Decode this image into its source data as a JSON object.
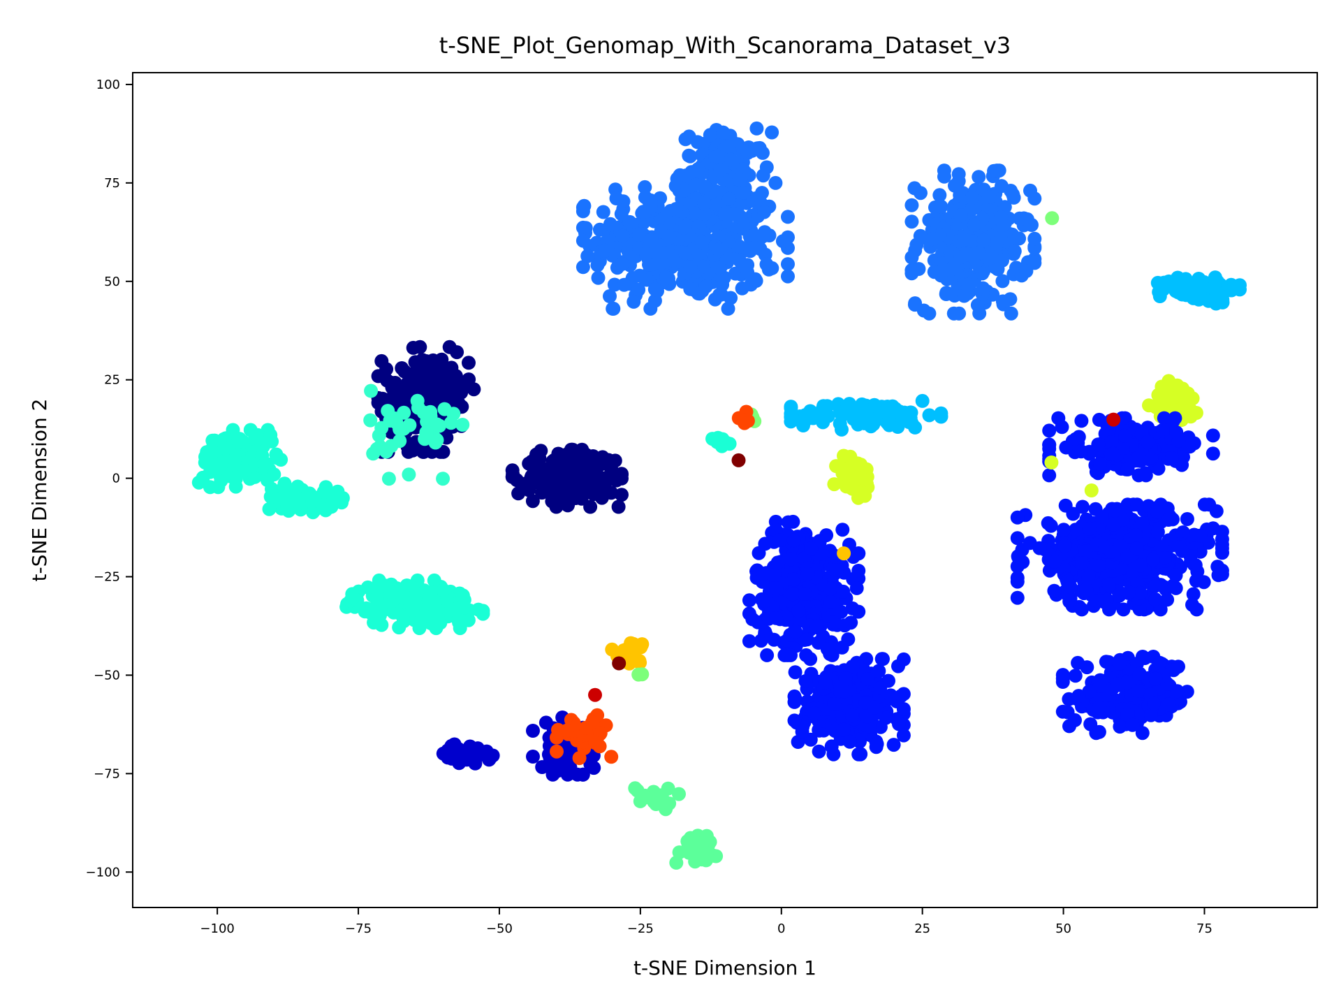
{
  "chart_data": {
    "type": "scatter",
    "title": "t-SNE_Plot_Genomap_With_Scanorama_Dataset_v3",
    "xlabel": "t-SNE Dimension 1",
    "ylabel": "t-SNE Dimension 2",
    "xlim": [
      -115,
      95
    ],
    "ylim": [
      -109,
      103
    ],
    "xticks": [
      {
        "value": -100,
        "label": "−100"
      },
      {
        "value": -75,
        "label": "−75"
      },
      {
        "value": -50,
        "label": "−50"
      },
      {
        "value": -25,
        "label": "−25"
      },
      {
        "value": 0,
        "label": "0"
      },
      {
        "value": 25,
        "label": "25"
      },
      {
        "value": 50,
        "label": "50"
      },
      {
        "value": 75,
        "label": "75"
      }
    ],
    "yticks": [
      {
        "value": 100,
        "label": "100"
      },
      {
        "value": 75,
        "label": "75"
      },
      {
        "value": 50,
        "label": "50"
      },
      {
        "value": 25,
        "label": "25"
      },
      {
        "value": 0,
        "label": "0"
      },
      {
        "value": -25,
        "label": "−25"
      },
      {
        "value": -50,
        "label": "−50"
      },
      {
        "value": -75,
        "label": "−75"
      },
      {
        "value": -100,
        "label": "−100"
      }
    ],
    "grid": false,
    "legend": "none",
    "colormap": "jet",
    "clusters": [
      {
        "color": "#1a73ff",
        "shape": "blob",
        "center": [
          -17,
          60
        ],
        "spread": [
          15,
          14
        ],
        "n": 420
      },
      {
        "color": "#1a73ff",
        "shape": "blob",
        "center": [
          -10,
          78
        ],
        "spread": [
          7,
          9
        ],
        "n": 120
      },
      {
        "color": "#1a73ff",
        "shape": "blob",
        "center": [
          34,
          60
        ],
        "spread": [
          9,
          15
        ],
        "n": 260
      },
      {
        "color": "#00bfff",
        "shape": "blob",
        "center": [
          74,
          48
        ],
        "spread": [
          6,
          3
        ],
        "n": 90
      },
      {
        "color": "#00bfff",
        "shape": "blob",
        "center": [
          15,
          16
        ],
        "spread": [
          11,
          3
        ],
        "n": 110
      },
      {
        "color": "#d6ff24",
        "shape": "blob",
        "center": [
          13,
          0
        ],
        "spread": [
          3,
          5
        ],
        "n": 45
      },
      {
        "color": "#d6ff24",
        "shape": "blob",
        "center": [
          70,
          19
        ],
        "spread": [
          4,
          5
        ],
        "n": 50
      },
      {
        "color": "#000080",
        "shape": "blob",
        "center": [
          -63,
          20
        ],
        "spread": [
          7,
          11
        ],
        "n": 220
      },
      {
        "color": "#000080",
        "shape": "blob",
        "center": [
          -38,
          0
        ],
        "spread": [
          8,
          6
        ],
        "n": 190
      },
      {
        "color": "#1affd5",
        "shape": "blob",
        "center": [
          -96,
          5
        ],
        "spread": [
          6,
          6
        ],
        "n": 130
      },
      {
        "color": "#1affd5",
        "shape": "blob",
        "center": [
          -85,
          -5
        ],
        "spread": [
          6,
          3
        ],
        "n": 60
      },
      {
        "color": "#1affd5",
        "shape": "blob",
        "center": [
          -65,
          -32
        ],
        "spread": [
          10,
          5
        ],
        "n": 170
      },
      {
        "color": "#33ffcc",
        "shape": "blob",
        "center": [
          -65,
          12
        ],
        "spread": [
          7,
          10
        ],
        "n": 40
      },
      {
        "color": "#0015ff",
        "shape": "blob",
        "center": [
          4,
          -28
        ],
        "spread": [
          8,
          14
        ],
        "n": 320
      },
      {
        "color": "#0015ff",
        "shape": "blob",
        "center": [
          12,
          -58
        ],
        "spread": [
          8,
          10
        ],
        "n": 240
      },
      {
        "color": "#0015ff",
        "shape": "blob",
        "center": [
          60,
          -20
        ],
        "spread": [
          15,
          11
        ],
        "n": 460
      },
      {
        "color": "#0015ff",
        "shape": "blob",
        "center": [
          62,
          -55
        ],
        "spread": [
          10,
          8
        ],
        "n": 160
      },
      {
        "color": "#0015ff",
        "shape": "blob",
        "center": [
          62,
          8
        ],
        "spread": [
          12,
          6
        ],
        "n": 150
      },
      {
        "color": "#0000cd",
        "shape": "blob",
        "center": [
          -56,
          -70
        ],
        "spread": [
          4,
          2
        ],
        "n": 40
      },
      {
        "color": "#0000cd",
        "shape": "blob",
        "center": [
          -38,
          -68
        ],
        "spread": [
          5,
          6
        ],
        "n": 70
      },
      {
        "color": "#ff4500",
        "shape": "blob",
        "center": [
          -35,
          -65
        ],
        "spread": [
          4,
          5
        ],
        "n": 35
      },
      {
        "color": "#ffc400",
        "shape": "blob",
        "center": [
          -27,
          -44
        ],
        "spread": [
          2.5,
          2.5
        ],
        "n": 20
      },
      {
        "color": "#5cff9a",
        "shape": "blob",
        "center": [
          -15,
          -94
        ],
        "spread": [
          3,
          3
        ],
        "n": 45
      },
      {
        "color": "#5cff9a",
        "shape": "blob",
        "center": [
          -22,
          -81
        ],
        "spread": [
          4,
          2.5
        ],
        "n": 20
      },
      {
        "color": "#1affd5",
        "shape": "blob",
        "center": [
          -11,
          10
        ],
        "spread": [
          1.5,
          2
        ],
        "n": 10
      },
      {
        "color": "#7dff7a",
        "shape": "blob",
        "center": [
          -5,
          16
        ],
        "spread": [
          1.5,
          1.5
        ],
        "n": 5
      },
      {
        "color": "#ff4500",
        "shape": "blob",
        "center": [
          -7,
          15
        ],
        "spread": [
          1,
          2
        ],
        "n": 5
      },
      {
        "color": "#800000",
        "shape": "blob",
        "center": [
          -7.5,
          4.5
        ],
        "spread": [
          0.2,
          0.2
        ],
        "n": 1
      },
      {
        "color": "#ffc400",
        "shape": "blob",
        "center": [
          11,
          -19
        ],
        "spread": [
          0.2,
          0.2
        ],
        "n": 1
      },
      {
        "color": "#d6ff24",
        "shape": "blob",
        "center": [
          55,
          -3
        ],
        "spread": [
          0.2,
          0.2
        ],
        "n": 1
      },
      {
        "color": "#d6ff24",
        "shape": "blob",
        "center": [
          48,
          4
        ],
        "spread": [
          0.2,
          0.2
        ],
        "n": 1
      },
      {
        "color": "#7dff7a",
        "shape": "blob",
        "center": [
          48,
          66
        ],
        "spread": [
          0.2,
          0.2
        ],
        "n": 1
      },
      {
        "color": "#cc0000",
        "shape": "blob",
        "center": [
          59,
          15
        ],
        "spread": [
          0.2,
          0.2
        ],
        "n": 1
      },
      {
        "color": "#800000",
        "shape": "blob",
        "center": [
          -29,
          -47
        ],
        "spread": [
          0.2,
          0.2
        ],
        "n": 1
      },
      {
        "color": "#cc0000",
        "shape": "blob",
        "center": [
          -33,
          -55
        ],
        "spread": [
          0.2,
          0.2
        ],
        "n": 1
      },
      {
        "color": "#7dff7a",
        "shape": "blob",
        "center": [
          -25,
          -50
        ],
        "spread": [
          0.5,
          0.3
        ],
        "n": 2
      }
    ]
  }
}
